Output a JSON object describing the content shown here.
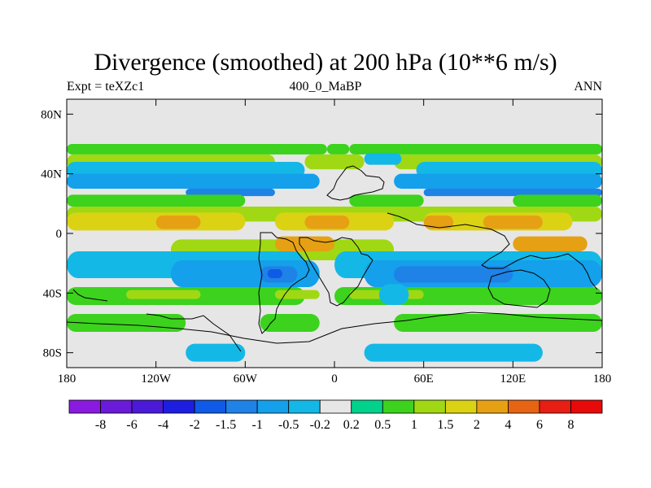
{
  "title": "Divergence (smoothed) at 200 hPa (10**6 m/s)",
  "subtitle_left": "Expt = teXZc1",
  "subtitle_center": "400_0_MaBP",
  "subtitle_right": "ANN",
  "chart_data": {
    "type": "heatmap",
    "projection": "cylindrical equidistant",
    "x_range": [
      -180,
      180
    ],
    "y_range": [
      -90,
      90
    ],
    "x_ticks": [
      {
        "value": -180,
        "label": "180"
      },
      {
        "value": -120,
        "label": "120W"
      },
      {
        "value": -60,
        "label": "60W"
      },
      {
        "value": 0,
        "label": "0"
      },
      {
        "value": 60,
        "label": "60E"
      },
      {
        "value": 120,
        "label": "120E"
      },
      {
        "value": 180,
        "label": "180"
      }
    ],
    "y_ticks": [
      {
        "value": 80,
        "label": "80N"
      },
      {
        "value": 40,
        "label": "40N"
      },
      {
        "value": 0,
        "label": "0"
      },
      {
        "value": -40,
        "label": "40S"
      },
      {
        "value": -80,
        "label": "80S"
      }
    ],
    "colorbar": {
      "labels": [
        "-8",
        "-6",
        "-4",
        "-2",
        "-1.5",
        "-1",
        "-0.5",
        "-0.2",
        "0.2",
        "0.5",
        "1",
        "1.5",
        "2",
        "4",
        "6",
        "8"
      ],
      "colors": [
        "#8b1ae0",
        "#6a1ad8",
        "#4a1ad8",
        "#1e1ee0",
        "#0f5ae6",
        "#1e82e6",
        "#14a0ea",
        "#14b8e6",
        "#e6e6e6",
        "#00d28c",
        "#3cd21e",
        "#a0d814",
        "#dcd214",
        "#e6a014",
        "#e66414",
        "#e61e14",
        "#e60a0a"
      ]
    },
    "bands": [
      {
        "lat": [
          53,
          60
        ],
        "lon_ranges": [
          [
            -180,
            -5
          ],
          [
            -5,
            10
          ],
          [
            10,
            180
          ]
        ],
        "value": 0.5
      },
      {
        "lat": [
          43,
          53
        ],
        "lon_ranges": [
          [
            -180,
            -40
          ],
          [
            -20,
            20
          ],
          [
            40,
            180
          ]
        ],
        "value": 1.0
      },
      {
        "lat": [
          37,
          48
        ],
        "lon_ranges": [
          [
            -180,
            -20
          ],
          [
            55,
            180
          ]
        ],
        "value": -0.5
      },
      {
        "lat": [
          30,
          40
        ],
        "lon_ranges": [
          [
            -180,
            -10
          ],
          [
            40,
            180
          ]
        ],
        "value": -1.0
      },
      {
        "lat": [
          25,
          30
        ],
        "lon_ranges": [
          [
            -100,
            -40
          ],
          [
            60,
            180
          ]
        ],
        "value": -1.5
      },
      {
        "lat": [
          18,
          26
        ],
        "lon_ranges": [
          [
            -180,
            -60
          ],
          [
            10,
            60
          ],
          [
            120,
            180
          ]
        ],
        "value": 0.5
      },
      {
        "lat": [
          8,
          18
        ],
        "lon_ranges": [
          [
            -180,
            180
          ]
        ],
        "value": 1.0
      },
      {
        "lat": [
          2,
          14
        ],
        "lon_ranges": [
          [
            -180,
            -60
          ],
          [
            -40,
            40
          ],
          [
            60,
            160
          ]
        ],
        "value": 1.5
      },
      {
        "lat": [
          3,
          12
        ],
        "lon_ranges": [
          [
            -120,
            -90
          ],
          [
            -20,
            10
          ],
          [
            60,
            80
          ],
          [
            100,
            140
          ]
        ],
        "value": 2.0
      },
      {
        "lat": [
          -18,
          -4
        ],
        "lon_ranges": [
          [
            -110,
            40
          ]
        ],
        "value": 1.0
      },
      {
        "lat": [
          -12,
          -2
        ],
        "lon_ranges": [
          [
            -40,
            0
          ],
          [
            120,
            170
          ]
        ],
        "value": 2.0
      },
      {
        "lat": [
          -30,
          -12
        ],
        "lon_ranges": [
          [
            -180,
            -20
          ],
          [
            0,
            180
          ]
        ],
        "value": -0.5
      },
      {
        "lat": [
          -36,
          -18
        ],
        "lon_ranges": [
          [
            -110,
            -10
          ],
          [
            20,
            180
          ]
        ],
        "value": -1.0
      },
      {
        "lat": [
          -33,
          -22
        ],
        "lon_ranges": [
          [
            -50,
            -25
          ],
          [
            40,
            120
          ]
        ],
        "value": -1.5
      },
      {
        "lat": [
          -30,
          -24
        ],
        "lon_ranges": [
          [
            -45,
            -35
          ]
        ],
        "value": -2.0
      },
      {
        "lat": [
          -48,
          -36
        ],
        "lon_ranges": [
          [
            -180,
            -20
          ],
          [
            0,
            180
          ]
        ],
        "value": 0.5
      },
      {
        "lat": [
          -44,
          -38
        ],
        "lon_ranges": [
          [
            -140,
            -90
          ],
          [
            -40,
            -10
          ],
          [
            10,
            60
          ]
        ],
        "value": 1.0
      },
      {
        "lat": [
          -66,
          -54
        ],
        "lon_ranges": [
          [
            -180,
            -100
          ],
          [
            -50,
            -10
          ],
          [
            40,
            180
          ]
        ],
        "value": 0.5
      },
      {
        "lat": [
          -86,
          -74
        ],
        "lon_ranges": [
          [
            -100,
            -60
          ],
          [
            20,
            140
          ]
        ],
        "value": -0.5
      },
      {
        "lat": [
          -48,
          -34
        ],
        "lon_ranges": [
          [
            30,
            50
          ]
        ],
        "value": -0.5
      },
      {
        "lat": [
          46,
          54
        ],
        "lon_ranges": [
          [
            20,
            45
          ]
        ],
        "value": -0.5
      }
    ]
  }
}
